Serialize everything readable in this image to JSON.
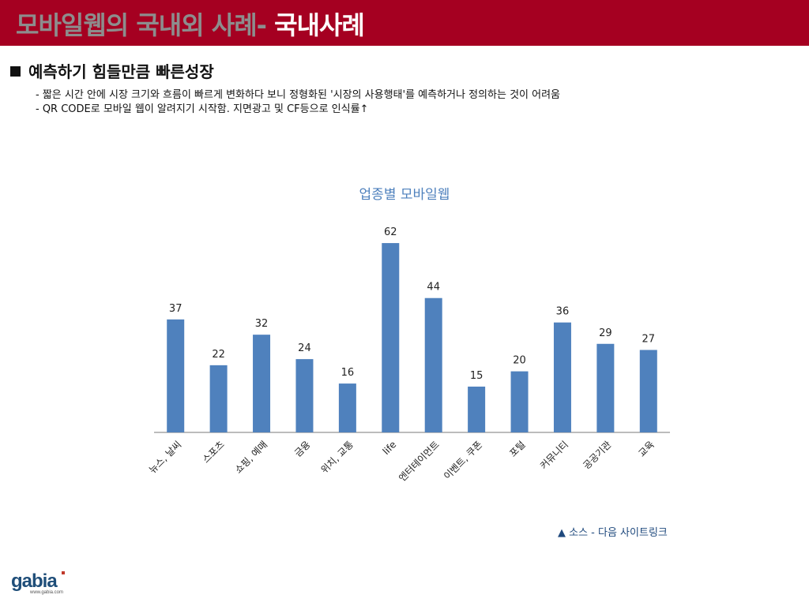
{
  "header": {
    "title_grey": "모바일웹의 국내외 사례-",
    "title_white": " 국내사례",
    "bar_color": "#a50021"
  },
  "section": {
    "heading": "예측하기 힘들만큼 빠른성장",
    "bullets": [
      "- 짧은 시간 안에 시장 크기와 흐름이 빠르게 변화하다 보니 정형화된 '시장의 사용행태'를 예측하거나 정의하는 것이 어려움",
      "- QR CODE로 모바일 웹이 알려지기 시작함. 지면광고 및 CF등으로 인식률↑"
    ]
  },
  "chart_data": {
    "type": "bar",
    "title": "업종별 모바일웹",
    "categories": [
      "뉴스, 날씨",
      "스포츠",
      "쇼핑, 예매",
      "금융",
      "위치, 교통",
      "life",
      "엔터테이먼트",
      "이벤트, 쿠폰",
      "포털",
      "커뮤니티",
      "공공기관",
      "교육"
    ],
    "values": [
      37,
      22,
      32,
      24,
      16,
      62,
      44,
      15,
      20,
      36,
      29,
      27
    ],
    "ylim": [
      0,
      70
    ],
    "grid": false,
    "legend": "none",
    "bar_color": "#4f81bd"
  },
  "source": {
    "text": "▲ 소스 - 다음 사이트링크"
  },
  "logo": {
    "brand": "gabia",
    "url_text": "www.gabia.com",
    "color": "#1f4e79"
  }
}
